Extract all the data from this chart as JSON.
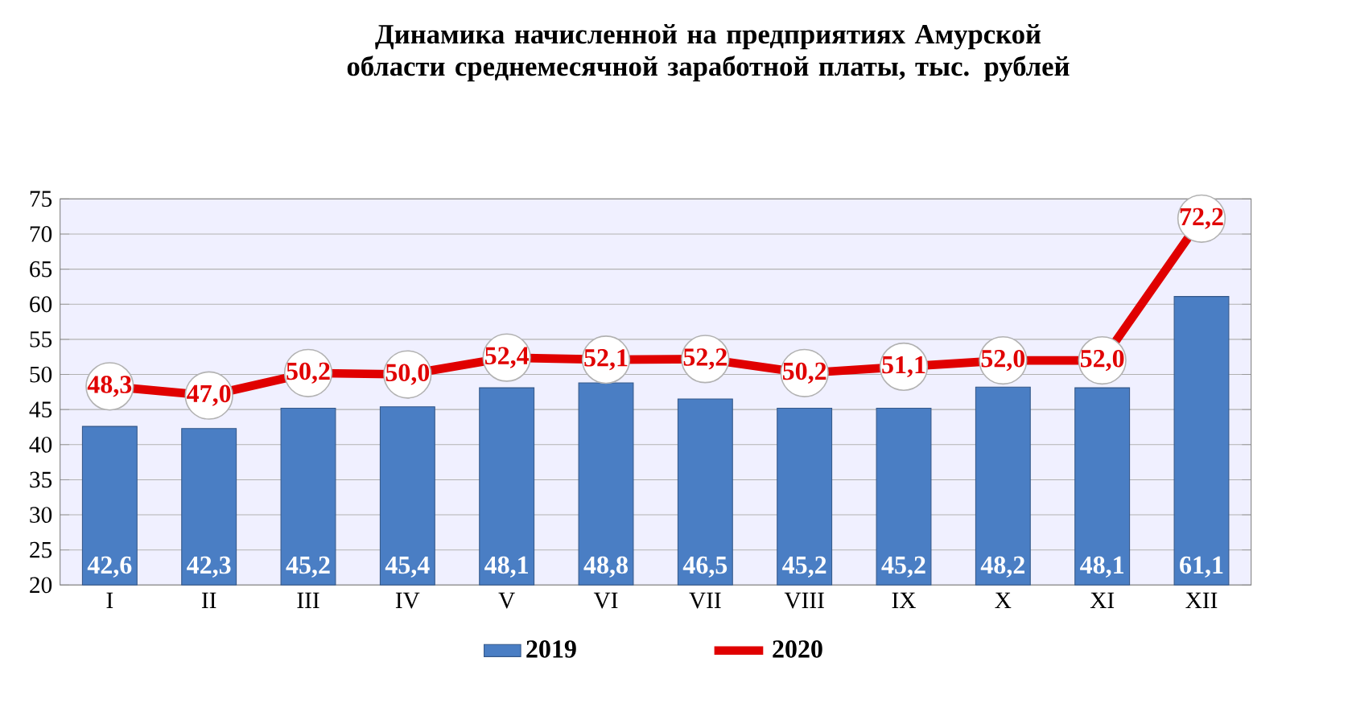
{
  "chart_data": {
    "type": "bar",
    "title": "Динамика начисленной на предприятиях Амурской области среднемесячной заработной платы, тыс. рублей",
    "categories": [
      "I",
      "II",
      "III",
      "IV",
      "V",
      "VI",
      "VII",
      "VIII",
      "IX",
      "X",
      "XI",
      "XII"
    ],
    "series": [
      {
        "name": "2019",
        "color": "#4a7ec4",
        "values": [
          42.6,
          42.3,
          45.2,
          45.4,
          48.1,
          48.8,
          46.5,
          45.2,
          45.2,
          48.2,
          48.1,
          61.1
        ],
        "value_labels": [
          "42,6",
          "42,3",
          "45,2",
          "45,4",
          "48,1",
          "48,8",
          "46,5",
          "45,2",
          "45,2",
          "48,2",
          "48,1",
          "61,1"
        ]
      },
      {
        "name": "2020",
        "type": "line",
        "color": "#e00000",
        "marker": "circle",
        "values": [
          48.3,
          47.0,
          50.2,
          50.0,
          52.4,
          52.1,
          52.2,
          50.2,
          51.1,
          52.0,
          52.0,
          72.2
        ],
        "value_labels": [
          "48,3",
          "47,0",
          "50,2",
          "50,0",
          "52,4",
          "52,1",
          "52,2",
          "50,2",
          "51,1",
          "52,0",
          "52,0",
          "72,2"
        ]
      }
    ],
    "ylim": [
      20,
      75
    ],
    "yticks": [
      20,
      25,
      30,
      35,
      40,
      45,
      50,
      55,
      60,
      65,
      70,
      75
    ],
    "grid": "y",
    "legend": "bottom"
  }
}
